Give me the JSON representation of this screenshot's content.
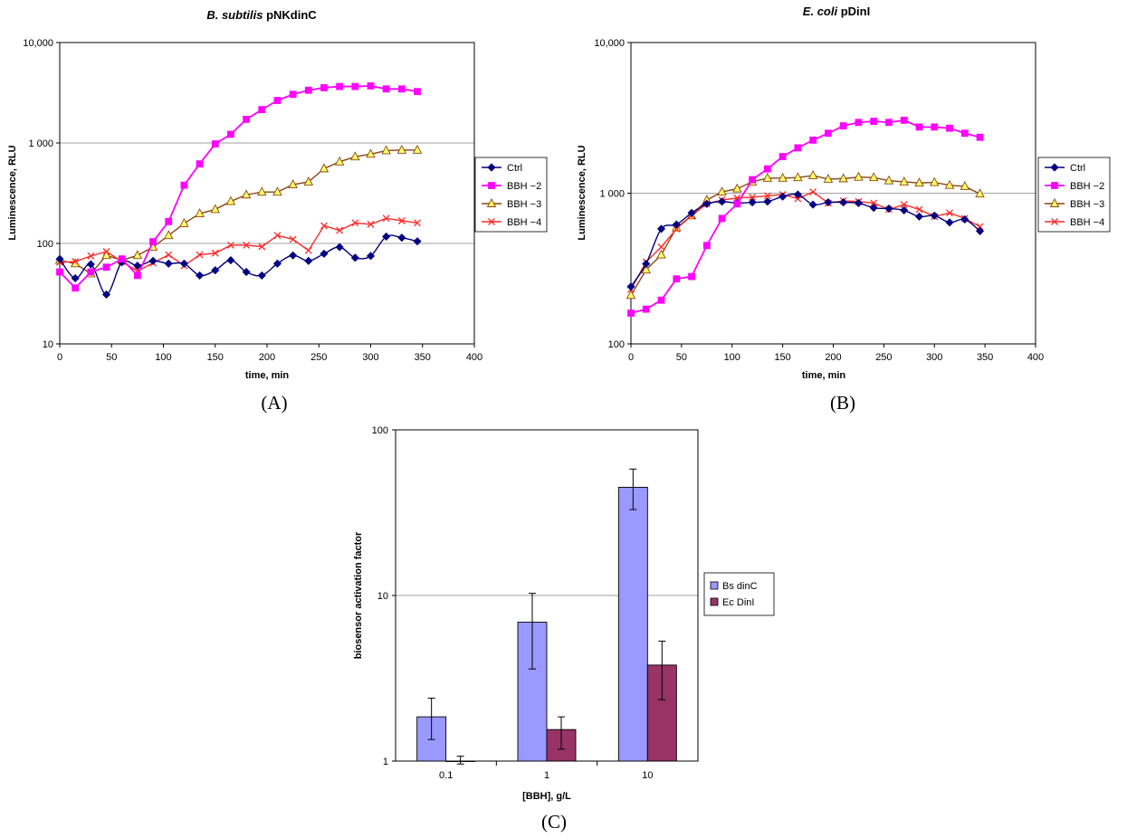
{
  "colors": {
    "ctrl": "#000080",
    "bbh2": "#ff00ff",
    "bbh3": "#8b4513",
    "bbh3_marker": "#ffff66",
    "bbh4": "#ff2a2a",
    "bs_dinc": "#9999ff",
    "ec_dinl": "#993366"
  },
  "chart_data": [
    {
      "id": "A",
      "type": "line",
      "panel_label": "(A)",
      "title_italic": "B. subtilis",
      "title_rest": " pNKdinC",
      "xlabel": "time, min",
      "ylabel": "Luminescence, RLU",
      "yscale": "log",
      "xlim": [
        0,
        400
      ],
      "ylim": [
        10,
        10000
      ],
      "xticks": [
        0,
        50,
        100,
        150,
        200,
        250,
        300,
        350,
        400
      ],
      "yticks": [
        {
          "value": 10,
          "label": "10"
        },
        {
          "value": 100,
          "label": "100"
        },
        {
          "value": 1000,
          "label": "1 000"
        },
        {
          "value": 10000,
          "label": "10,000"
        }
      ],
      "grid": "horizontal",
      "legend": "right",
      "series": [
        {
          "name": "Ctrl",
          "marker": "diamond",
          "smooth": true,
          "x": [
            0,
            15,
            30,
            45,
            60,
            75,
            90,
            105,
            120,
            135,
            150,
            165,
            180,
            195,
            210,
            225,
            240,
            255,
            270,
            285,
            300,
            315,
            330,
            345
          ],
          "y": [
            70,
            45,
            62,
            31,
            65,
            60,
            67,
            63,
            63,
            48,
            54,
            68,
            52,
            48,
            63,
            76,
            67,
            79,
            92,
            72,
            75,
            117,
            114,
            105
          ]
        },
        {
          "name": "BBH −2",
          "marker": "square",
          "smooth": false,
          "x": [
            0,
            15,
            30,
            45,
            60,
            75,
            90,
            105,
            120,
            135,
            150,
            165,
            180,
            195,
            210,
            225,
            240,
            255,
            270,
            285,
            300,
            315,
            330,
            345
          ],
          "y": [
            52,
            36,
            52,
            58,
            70,
            48,
            104,
            165,
            380,
            620,
            980,
            1220,
            1720,
            2150,
            2650,
            3050,
            3350,
            3550,
            3650,
            3650,
            3700,
            3450,
            3450,
            3250
          ]
        },
        {
          "name": "BBH −3",
          "marker": "triangle",
          "smooth": false,
          "x": [
            0,
            15,
            30,
            45,
            60,
            75,
            90,
            105,
            120,
            135,
            150,
            165,
            180,
            195,
            210,
            225,
            240,
            255,
            270,
            285,
            300,
            315,
            330,
            345
          ],
          "y": [
            68,
            63,
            50,
            76,
            68,
            76,
            92,
            120,
            158,
            198,
            218,
            262,
            305,
            325,
            325,
            385,
            410,
            555,
            650,
            730,
            775,
            840,
            850,
            850
          ]
        },
        {
          "name": "BBH −4",
          "marker": "x",
          "smooth": false,
          "x": [
            0,
            15,
            30,
            45,
            60,
            75,
            90,
            105,
            120,
            135,
            150,
            165,
            180,
            195,
            210,
            225,
            240,
            255,
            270,
            285,
            300,
            315,
            330,
            345
          ],
          "y": [
            65,
            66,
            75,
            83,
            66,
            53,
            64,
            77,
            60,
            77,
            80,
            96,
            96,
            93,
            120,
            110,
            85,
            150,
            135,
            160,
            155,
            178,
            168,
            160
          ]
        }
      ]
    },
    {
      "id": "B",
      "type": "line",
      "panel_label": "(B)",
      "title_italic": "E. coli",
      "title_rest": " pDinI",
      "xlabel": "time, min",
      "ylabel": "Luminescence, RLU",
      "yscale": "log",
      "xlim": [
        0,
        400
      ],
      "ylim": [
        100,
        10000
      ],
      "xticks": [
        0,
        50,
        100,
        150,
        200,
        250,
        300,
        350,
        400
      ],
      "yticks": [
        {
          "value": 100,
          "label": "100"
        },
        {
          "value": 1000,
          "label": "1 000"
        },
        {
          "value": 10000,
          "label": "10,000"
        }
      ],
      "grid": "horizontal",
      "legend": "right",
      "series": [
        {
          "name": "Ctrl",
          "marker": "diamond",
          "smooth": true,
          "x": [
            0,
            15,
            30,
            45,
            60,
            75,
            90,
            105,
            120,
            135,
            150,
            165,
            180,
            195,
            210,
            225,
            240,
            255,
            270,
            285,
            300,
            315,
            330,
            345
          ],
          "y": [
            240,
            340,
            580,
            620,
            740,
            850,
            880,
            860,
            870,
            880,
            950,
            980,
            840,
            870,
            870,
            860,
            800,
            790,
            770,
            700,
            710,
            640,
            670,
            560
          ]
        },
        {
          "name": "BBH −2",
          "marker": "square",
          "smooth": false,
          "x": [
            0,
            15,
            30,
            45,
            60,
            75,
            90,
            105,
            120,
            135,
            150,
            165,
            180,
            195,
            210,
            225,
            240,
            255,
            270,
            285,
            300,
            315,
            330,
            345
          ],
          "y": [
            160,
            170,
            195,
            270,
            280,
            450,
            680,
            850,
            1230,
            1450,
            1750,
            2000,
            2250,
            2500,
            2800,
            2950,
            3000,
            2950,
            3050,
            2750,
            2750,
            2700,
            2500,
            2350
          ]
        },
        {
          "name": "BBH −3",
          "marker": "triangle",
          "smooth": false,
          "x": [
            0,
            15,
            30,
            45,
            60,
            75,
            90,
            105,
            120,
            135,
            150,
            165,
            180,
            195,
            210,
            225,
            240,
            255,
            270,
            285,
            300,
            315,
            330,
            345
          ],
          "y": [
            210,
            310,
            390,
            590,
            710,
            900,
            1020,
            1070,
            1190,
            1260,
            1260,
            1270,
            1310,
            1240,
            1250,
            1280,
            1270,
            1210,
            1190,
            1170,
            1180,
            1130,
            1110,
            990
          ]
        },
        {
          "name": "BBH −4",
          "marker": "x",
          "smooth": false,
          "x": [
            0,
            15,
            30,
            45,
            60,
            75,
            90,
            105,
            120,
            135,
            150,
            165,
            180,
            195,
            210,
            225,
            240,
            255,
            270,
            285,
            300,
            315,
            330,
            345
          ],
          "y": [
            230,
            350,
            440,
            580,
            710,
            850,
            900,
            930,
            940,
            960,
            980,
            920,
            1020,
            860,
            890,
            880,
            860,
            780,
            840,
            780,
            700,
            740,
            680,
            600
          ]
        }
      ]
    },
    {
      "id": "C",
      "type": "bar",
      "panel_label": "(C)",
      "xlabel": "[BBH], g/L",
      "ylabel": "biosensor activation factor",
      "yscale": "log",
      "ylim": [
        1,
        100
      ],
      "yticks": [
        {
          "value": 1,
          "label": "1"
        },
        {
          "value": 10,
          "label": "10"
        },
        {
          "value": 100,
          "label": "100"
        }
      ],
      "categories": [
        "0.1",
        "1",
        "10"
      ],
      "grid": "horizontal",
      "legend": "right",
      "series": [
        {
          "name": "Bs dinC",
          "values": [
            1.85,
            6.9,
            45
          ],
          "err_low": [
            1.35,
            3.6,
            33
          ],
          "err_high": [
            2.4,
            10.3,
            58
          ]
        },
        {
          "name": "Ec DinI",
          "values": [
            1.0,
            1.55,
            3.8
          ],
          "err_low": [
            0.96,
            1.18,
            2.35
          ],
          "err_high": [
            1.07,
            1.85,
            5.3
          ]
        }
      ]
    }
  ]
}
